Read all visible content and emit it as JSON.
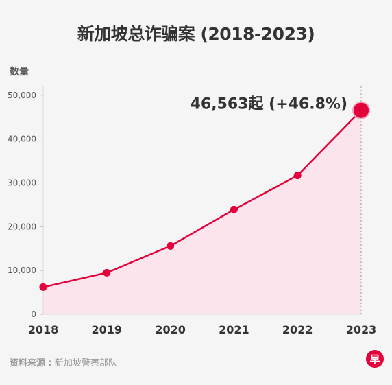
{
  "title": "新加坡总诈骗案 (2018-2023)",
  "source": {
    "label": "资料来源 :",
    "text": "新加坡警察部队"
  },
  "logo": {
    "text": "早"
  },
  "colors": {
    "line": "#e4003a",
    "area": "#fce4ec",
    "grid": "#d9d9d9",
    "text": "#333333"
  },
  "chart_data": {
    "type": "line",
    "title": "新加坡总诈骗案 (2018-2023)",
    "ylabel": "数量",
    "xlabel": "",
    "x": [
      "2018",
      "2019",
      "2020",
      "2021",
      "2022",
      "2023"
    ],
    "values": [
      6200,
      9500,
      15600,
      23900,
      31700,
      46563
    ],
    "ylim": [
      0,
      52000
    ],
    "yticks": [
      0,
      10000,
      20000,
      30000,
      40000,
      50000
    ],
    "ytick_labels": [
      "0",
      "10,000",
      "20,000",
      "30,000",
      "40,000",
      "50,000"
    ],
    "annotation": "46,563起 (+46.8%)",
    "grid": false,
    "area_fill": true
  }
}
